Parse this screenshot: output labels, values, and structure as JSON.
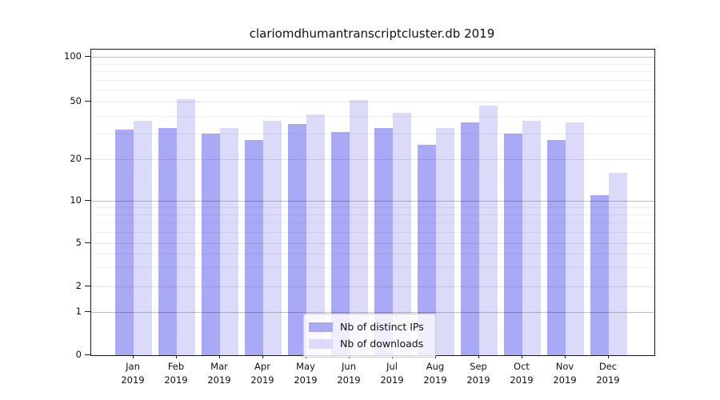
{
  "title": "clariomdhumantranscriptcluster.db 2019",
  "colors": {
    "ips_bar": "#a9a9f5",
    "downloads_bar": "#dbdbf9",
    "axis": "#1a1a1a"
  },
  "legend": {
    "position": "lower center",
    "items": [
      {
        "label": "Nb of distinct IPs",
        "color_key": "ips_bar"
      },
      {
        "label": "Nb of downloads",
        "color_key": "downloads_bar"
      }
    ]
  },
  "chart_data": {
    "type": "bar",
    "title": "clariomdhumantranscriptcluster.db 2019",
    "xlabel": "",
    "ylabel": "",
    "categories": [
      "Jan 2019",
      "Feb 2019",
      "Mar 2019",
      "Apr 2019",
      "May 2019",
      "Jun 2019",
      "Jul 2019",
      "Aug 2019",
      "Sep 2019",
      "Oct 2019",
      "Nov 2019",
      "Dec 2019"
    ],
    "series": [
      {
        "name": "Nb of distinct IPs",
        "values": [
          32,
          33,
          30,
          27,
          35,
          31,
          33,
          25,
          36,
          30,
          27,
          11
        ]
      },
      {
        "name": "Nb of downloads",
        "values": [
          37,
          52,
          33,
          37,
          41,
          51,
          42,
          33,
          47,
          37,
          36,
          16
        ]
      }
    ],
    "yscale": "symlog-like",
    "yticks": [
      0,
      1,
      2,
      5,
      10,
      20,
      50,
      100
    ],
    "ylim": [
      0,
      112
    ],
    "grid": true,
    "minor_gridlines": [
      3,
      4,
      6,
      7,
      8,
      9,
      30,
      40,
      60,
      70,
      80,
      90
    ]
  }
}
